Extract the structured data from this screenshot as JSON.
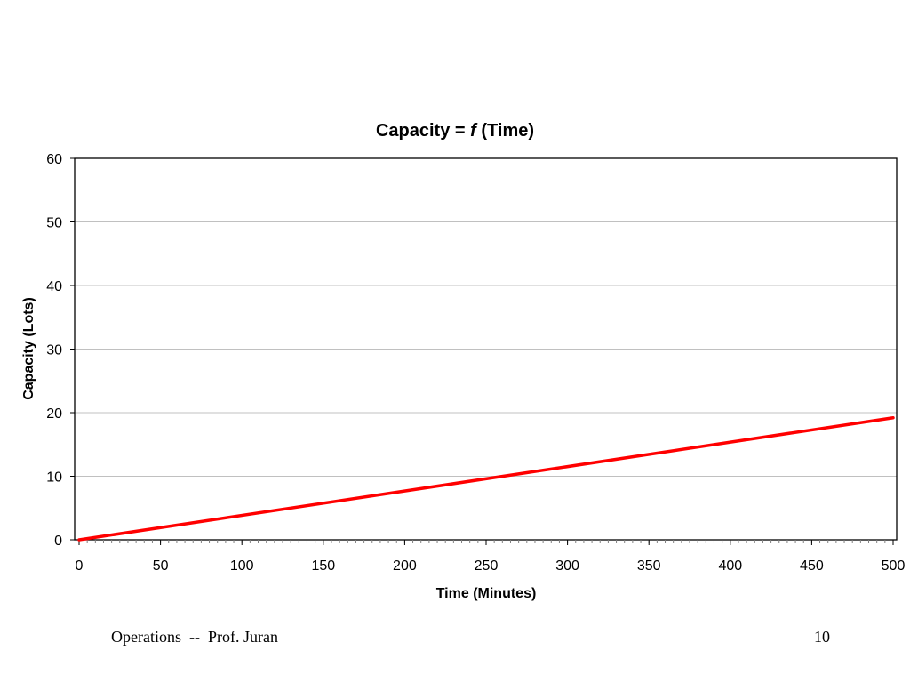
{
  "slide": {
    "footer_left": "Operations  --  Prof. Juran",
    "page_number": "10"
  },
  "chart_data": {
    "type": "line",
    "title_prefix": "Capacity = ",
    "title_function": "f",
    "title_suffix": " (Time)",
    "xlabel": "Time (Minutes)",
    "ylabel": "Capacity (Lots)",
    "xlim": [
      0,
      500
    ],
    "ylim": [
      0,
      60
    ],
    "x_ticks": [
      0,
      50,
      100,
      150,
      200,
      250,
      300,
      350,
      400,
      450,
      500
    ],
    "y_ticks": [
      0,
      10,
      20,
      30,
      40,
      50,
      60
    ],
    "x_minor_step": 5,
    "grid": "horizontal",
    "series": [
      {
        "name": "Capacity",
        "color": "#ff0000",
        "x": [
          0,
          500
        ],
        "y": [
          0,
          19.2
        ]
      }
    ]
  }
}
